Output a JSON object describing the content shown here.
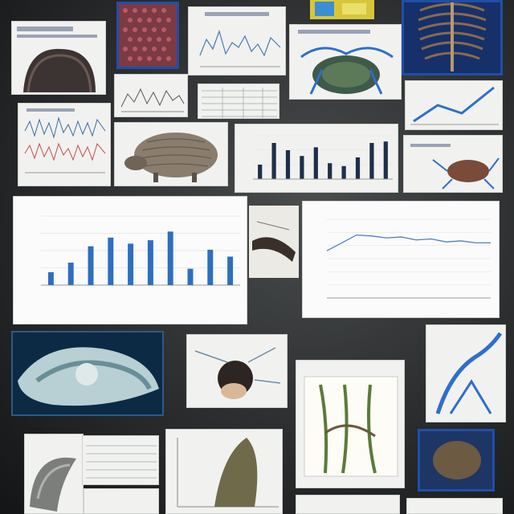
{
  "colors": {
    "background": "#2d2f30",
    "paper": "#f1f2ef",
    "bar_blue": "#2d6fc0",
    "bar_dark": "#1e2f4a",
    "line_blue": "#4f7fc6",
    "frame_blue": "#1f4fa8"
  },
  "chart_data": [
    {
      "type": "bar",
      "title": "",
      "xlabel": "",
      "ylabel": "",
      "categories": [
        "",
        "",
        "",
        "",
        "",
        "",
        "",
        "",
        "",
        ""
      ],
      "values": [
        15,
        26,
        45,
        55,
        48,
        52,
        62,
        19,
        41,
        33
      ],
      "ylim": [
        0,
        80
      ],
      "grid": true
    },
    {
      "type": "line",
      "title": "",
      "xlabel": "",
      "ylabel": "",
      "x": [
        1,
        2,
        3,
        4,
        5,
        6,
        7,
        8,
        9,
        10,
        11,
        12
      ],
      "y": [
        48,
        56,
        64,
        63,
        61,
        62,
        59,
        60,
        57,
        58,
        56,
        56
      ],
      "ylim": [
        0,
        80
      ],
      "grid": true
    },
    {
      "type": "bar",
      "title": "",
      "categories": [
        "",
        "",
        "",
        "",
        "",
        "",
        "",
        "",
        "",
        ""
      ],
      "values": [
        20,
        50,
        40,
        32,
        44,
        22,
        18,
        30,
        50,
        52
      ],
      "ylim": [
        0,
        60
      ],
      "grid": true
    }
  ],
  "icons": [
    "armadillo-image",
    "ribcage-image",
    "bone-image",
    "skull-image",
    "anatomy-sketch"
  ]
}
